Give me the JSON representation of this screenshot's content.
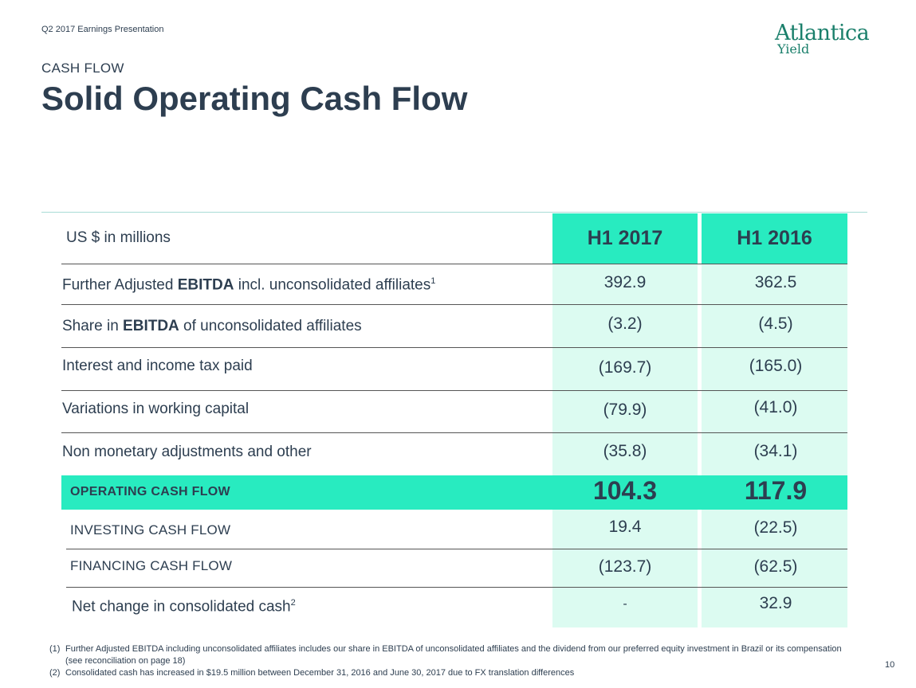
{
  "header": {
    "presentation": "Q2 2017 Earnings Presentation",
    "logo_line1": "Atlantica",
    "logo_line2": "Yield",
    "eyebrow": "CASH FLOW",
    "title": "Solid Operating Cash Flow"
  },
  "table": {
    "unit_label": "US $ in millions",
    "columns": [
      "H1 2017",
      "H1 2016"
    ],
    "rows": [
      {
        "pre": "Further Adjusted ",
        "bold": "EBITDA",
        "post": " incl. unconsolidated affiliates",
        "sup": "1",
        "v1": "392.9",
        "v2": "362.5"
      },
      {
        "pre": "Share in ",
        "bold": "EBITDA",
        "post": " of unconsolidated affiliates",
        "v1": "(3.2)",
        "v2": "(4.5)"
      },
      {
        "label": "Interest and income tax paid",
        "v1": "(169.7)",
        "v2": "(165.0)"
      },
      {
        "label": "Variations in working capital",
        "v1": "(79.9)",
        "v2": "(41.0)"
      },
      {
        "label": "Non monetary adjustments and other",
        "v1": "(35.8)",
        "v2": "(34.1)"
      }
    ],
    "operating": {
      "label": "OPERATING CASH FLOW",
      "v1": "104.3",
      "v2": "117.9"
    },
    "investing": {
      "label": "INVESTING CASH FLOW",
      "v1": "19.4",
      "v2": "(22.5)"
    },
    "financing": {
      "label": "FINANCING CASH FLOW",
      "v1": "(123.7)",
      "v2": "(62.5)"
    },
    "net_change": {
      "label": "Net change in consolidated cash",
      "sup": "2",
      "v1": "-",
      "v2": "32.9"
    }
  },
  "footnotes": [
    {
      "num": "(1)",
      "text": "Further Adjusted EBITDA including unconsolidated affiliates includes our share in EBITDA of unconsolidated affiliates and the dividend from our preferred equity investment in Brazil or its compensation (see reconciliation on page 18)"
    },
    {
      "num": "(2)",
      "text": "Consolidated cash has increased in $19.5 million between December 31, 2016 and June 30, 2017 due to FX translation differences"
    }
  ],
  "page_number": "10",
  "colors": {
    "accent": "#28ebc0",
    "column_fill": "#dcfbf1",
    "text": "#2d3e50",
    "logo": "#1a7f6b"
  }
}
